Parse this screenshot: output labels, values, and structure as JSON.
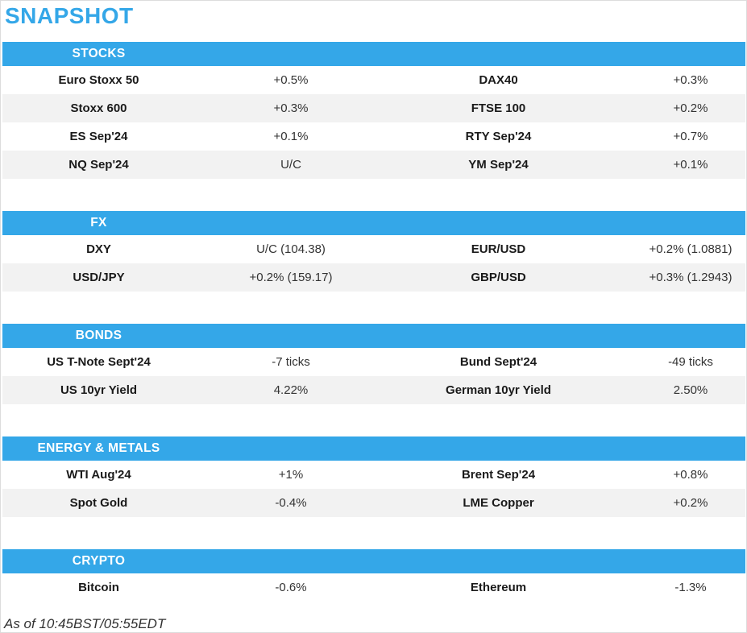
{
  "page": {
    "title": "SNAPSHOT",
    "footer": "As of 10:45BST/05:55EDT"
  },
  "colors": {
    "accent": "#34a7e8",
    "row_alt": "#f2f2f2",
    "header_text": "#ffffff"
  },
  "sections": [
    {
      "label": "STOCKS",
      "rows": [
        [
          "Euro Stoxx 50",
          "+0.5%",
          "DAX40",
          "+0.3%"
        ],
        [
          "Stoxx 600",
          "+0.3%",
          "FTSE 100",
          "+0.2%"
        ],
        [
          "ES Sep'24",
          "+0.1%",
          "RTY Sep'24",
          "+0.7%"
        ],
        [
          "NQ Sep'24",
          "U/C",
          "YM Sep'24",
          "+0.1%"
        ]
      ]
    },
    {
      "label": "FX",
      "rows": [
        [
          "DXY",
          "U/C (104.38)",
          "EUR/USD",
          "+0.2% (1.0881)"
        ],
        [
          "USD/JPY",
          "+0.2% (159.17)",
          "GBP/USD",
          "+0.3% (1.2943)"
        ]
      ]
    },
    {
      "label": "BONDS",
      "rows": [
        [
          "US T-Note Sept'24",
          "-7 ticks",
          "Bund Sept'24",
          "-49 ticks"
        ],
        [
          "US 10yr Yield",
          "4.22%",
          "German 10yr Yield",
          "2.50%"
        ]
      ]
    },
    {
      "label": "ENERGY & METALS",
      "rows": [
        [
          "WTI Aug'24",
          "+1%",
          "Brent Sep'24",
          "+0.8%"
        ],
        [
          "Spot Gold",
          "-0.4%",
          "LME Copper",
          "+0.2%"
        ]
      ]
    },
    {
      "label": "CRYPTO",
      "rows": [
        [
          "Bitcoin",
          "-0.6%",
          "Ethereum",
          "-1.3%"
        ]
      ]
    }
  ]
}
